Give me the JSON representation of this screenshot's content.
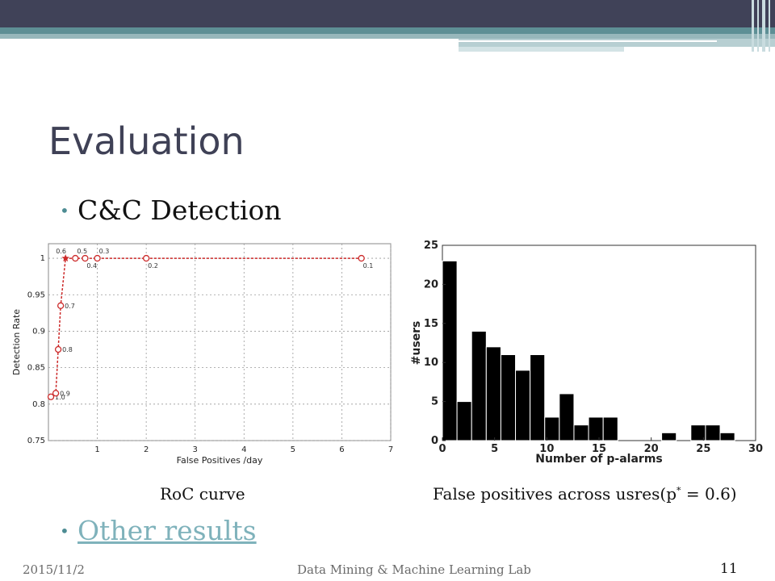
{
  "slide": {
    "title": "Evaluation",
    "bullet1": "C&C Detection",
    "bullet2_link": "Other results",
    "caption_left": "RoC curve",
    "caption_right_main": "False positives across usres(p",
    "caption_right_sup": "*",
    "caption_right_tail": " = 0.6)",
    "footer_date": "2015/11/2",
    "footer_lab": "Data Mining & Machine Learning Lab",
    "page_number": "11"
  },
  "colors": {
    "header_dark": "#404258",
    "accent_teal": "#5e8f95",
    "roc_line": "#cc2a2a",
    "histogram_bar": "#000000",
    "link": "#7fb2bb"
  },
  "chart_data": [
    {
      "type": "line",
      "xlabel": "False Positives /day",
      "ylabel": "Detection Rate",
      "xlim": [
        0,
        7
      ],
      "ylim": [
        0.75,
        1.02
      ],
      "x_ticks": [
        "1",
        "2",
        "3",
        "4",
        "5",
        "6",
        "7"
      ],
      "y_ticks": [
        "0.75",
        "0.8",
        "0.85",
        "0.9",
        "0.95",
        "1"
      ],
      "grid": true,
      "series": [
        {
          "x": [
            0.05,
            0.15,
            0.2,
            0.25,
            0.35,
            0.55,
            0.75,
            1.0,
            2.0,
            6.4
          ],
          "y": [
            0.81,
            0.815,
            0.875,
            0.935,
            1.0,
            1.0,
            1.0,
            1.0,
            1.0,
            1.0
          ],
          "labels": [
            "1.0",
            "0.9",
            "0.8",
            "0.7",
            "0.6",
            "0.5",
            "0.4",
            "0.3",
            "0.2",
            "0.1"
          ]
        }
      ],
      "highlight_index": 4
    },
    {
      "type": "bar",
      "xlabel": "Number of p-alarms",
      "ylabel": "#users",
      "xlim": [
        0,
        30
      ],
      "ylim": [
        0,
        25
      ],
      "x_ticks": [
        "0",
        "5",
        "10",
        "15",
        "20",
        "25",
        "30"
      ],
      "y_ticks": [
        "0",
        "5",
        "10",
        "15",
        "20",
        "25"
      ],
      "grid": false,
      "bin_width": 1.4,
      "bins": [
        0,
        1.4,
        2.8,
        4.2,
        5.6,
        7.0,
        8.4,
        9.8,
        11.2,
        12.6,
        14.0,
        15.4,
        16.8,
        18.2,
        19.6,
        21.0,
        22.4,
        23.8,
        25.2,
        26.6,
        28.0
      ],
      "values": [
        23,
        5,
        14,
        12,
        11,
        9,
        11,
        3,
        6,
        2,
        3,
        3,
        0,
        0,
        0,
        1,
        0,
        2,
        2,
        1,
        0
      ]
    }
  ]
}
